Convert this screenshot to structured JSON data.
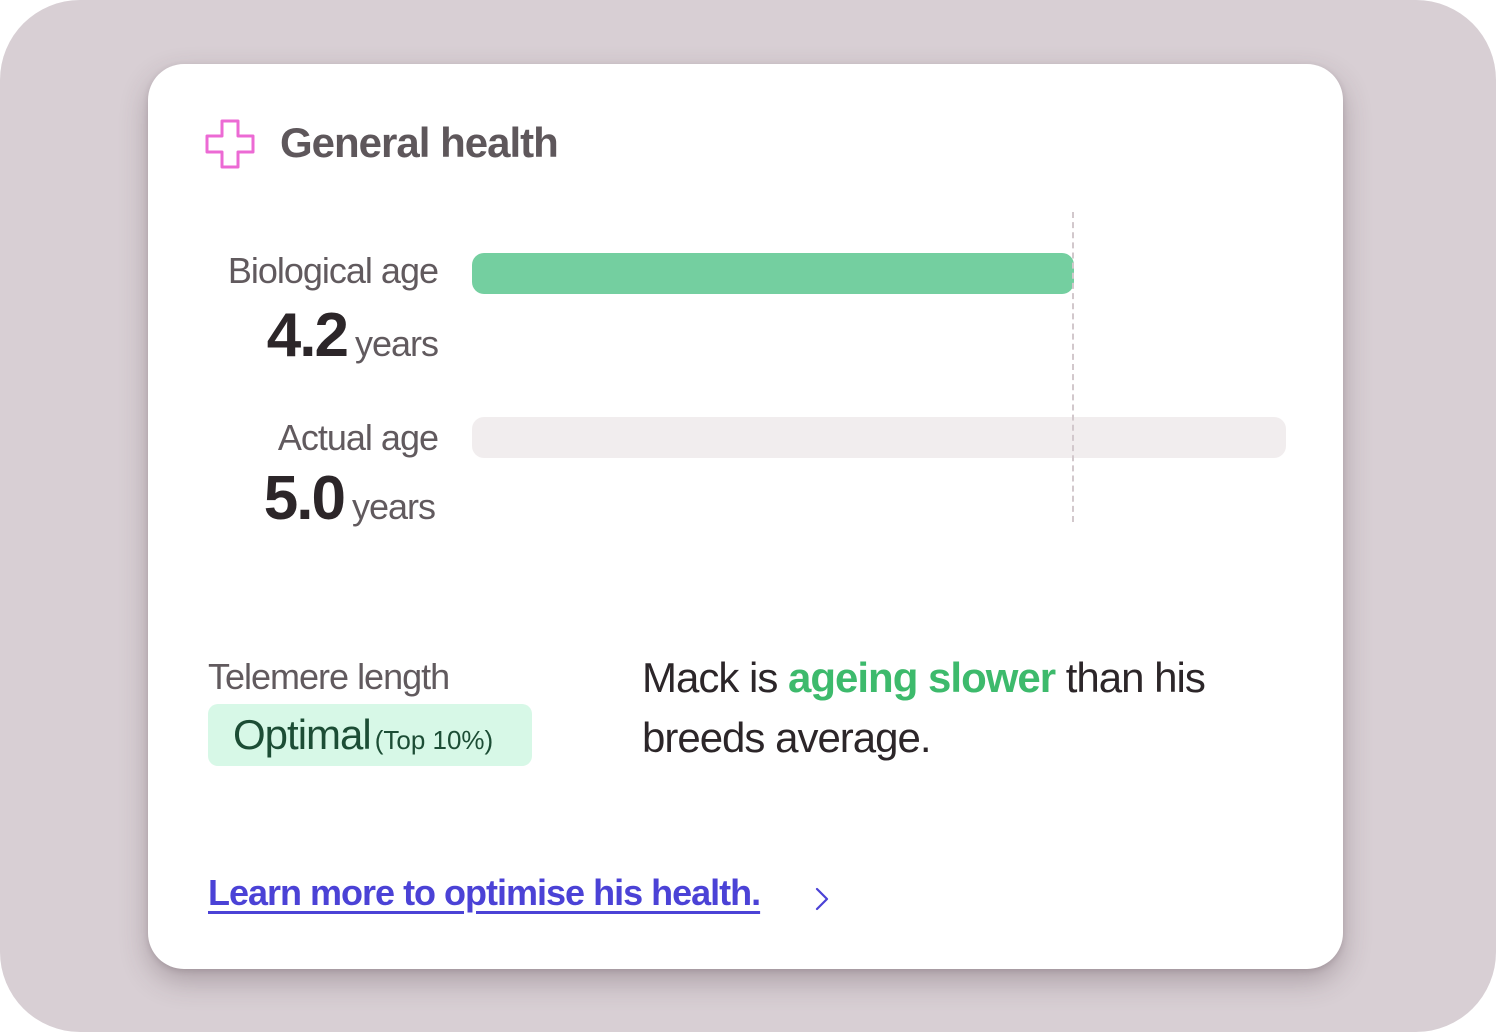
{
  "card": {
    "title": "General health",
    "icon": "medical-cross-icon",
    "icon_color": "#ec6ad4"
  },
  "biological_age": {
    "label": "Biological age",
    "value": "4.2",
    "unit": "years",
    "bar_fraction": 0.74,
    "bar_color": "#74cfa0"
  },
  "actual_age": {
    "label": "Actual age",
    "value": "5.0",
    "unit": "years",
    "bar_fraction": 1.0,
    "bar_color": "#f1edee"
  },
  "average_marker_fraction": 0.74,
  "telemere": {
    "label": "Telemere length",
    "status": "Optimal",
    "rank": "(Top 10%)",
    "badge_color": "#d7f8e7"
  },
  "summary": {
    "prefix": "Mack is ",
    "highlight": "ageing slower",
    "suffix": " than his breeds average.",
    "highlight_color": "#3dba6c"
  },
  "link": {
    "label": "Learn more to optimise his health.",
    "icon": "chevron-right-icon",
    "color": "#4b42d6"
  }
}
